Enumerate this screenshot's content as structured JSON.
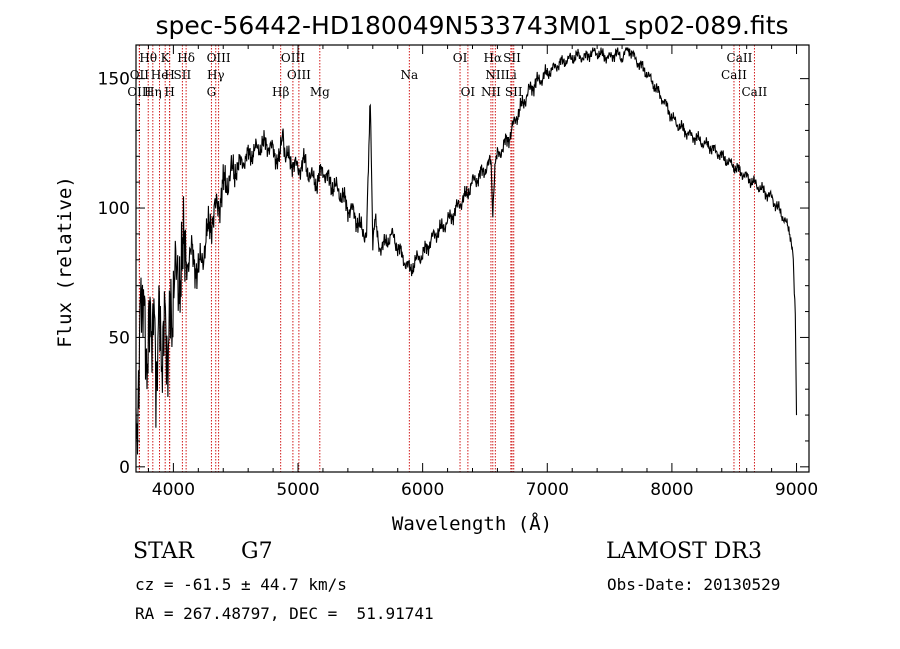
{
  "chart_data": {
    "type": "line",
    "title": "spec-56442-HD180049N533743M01_sp02-089.fits",
    "xlabel": "Wavelength (Å)",
    "ylabel": "Flux (relative)",
    "xlim": [
      3700,
      9100
    ],
    "ylim": [
      -2,
      163
    ],
    "xticks": [
      4000,
      5000,
      6000,
      7000,
      8000,
      9000
    ],
    "yticks": [
      0,
      50,
      100,
      150
    ],
    "series": [
      {
        "name": "flux",
        "x": [
          3700,
          3720,
          3740,
          3760,
          3780,
          3800,
          3820,
          3840,
          3860,
          3880,
          3900,
          3920,
          3940,
          3960,
          3980,
          4000,
          4050,
          4100,
          4150,
          4200,
          4250,
          4300,
          4350,
          4400,
          4450,
          4500,
          4550,
          4600,
          4650,
          4700,
          4750,
          4800,
          4850,
          4880,
          4900,
          4950,
          5000,
          5050,
          5100,
          5150,
          5200,
          5250,
          5300,
          5350,
          5400,
          5450,
          5500,
          5550,
          5580,
          5600,
          5620,
          5650,
          5700,
          5750,
          5800,
          5850,
          5900,
          5950,
          6000,
          6050,
          6100,
          6150,
          6200,
          6250,
          6300,
          6350,
          6400,
          6450,
          6500,
          6550,
          6563,
          6580,
          6600,
          6650,
          6700,
          6750,
          6800,
          6850,
          6900,
          6950,
          7000,
          7050,
          7100,
          7150,
          7200,
          7250,
          7300,
          7350,
          7400,
          7450,
          7500,
          7550,
          7600,
          7650,
          7700,
          7750,
          7800,
          7850,
          7900,
          7950,
          8000,
          8050,
          8100,
          8150,
          8200,
          8250,
          8300,
          8350,
          8400,
          8450,
          8500,
          8550,
          8600,
          8650,
          8700,
          8750,
          8800,
          8850,
          8900,
          8950,
          8970,
          8990,
          9000
        ],
        "values": [
          5,
          35,
          60,
          75,
          30,
          60,
          45,
          70,
          25,
          65,
          40,
          55,
          50,
          45,
          60,
          65,
          78,
          80,
          82,
          75,
          85,
          95,
          100,
          108,
          112,
          115,
          118,
          120,
          122,
          124,
          125,
          122,
          118,
          128,
          120,
          118,
          115,
          118,
          112,
          110,
          115,
          110,
          108,
          105,
          100,
          98,
          92,
          90,
          140,
          88,
          95,
          85,
          86,
          90,
          85,
          80,
          76,
          80,
          82,
          86,
          90,
          92,
          95,
          98,
          102,
          105,
          110,
          112,
          115,
          118,
          95,
          118,
          120,
          124,
          128,
          135,
          140,
          145,
          148,
          150,
          152,
          154,
          156,
          157,
          158,
          159,
          158,
          160,
          160,
          159,
          158,
          160,
          158,
          162,
          158,
          155,
          152,
          148,
          144,
          140,
          135,
          132,
          130,
          128,
          127,
          125,
          124,
          122,
          120,
          118,
          116,
          114,
          112,
          110,
          108,
          106,
          104,
          100,
          96,
          90,
          82,
          60,
          20
        ]
      }
    ],
    "spectral_lines": [
      {
        "label": "Hθ",
        "wavelength": 3798,
        "row": 0
      },
      {
        "label": "K",
        "wavelength": 3934,
        "row": 0
      },
      {
        "label": "Hδ",
        "wavelength": 4102,
        "row": 0
      },
      {
        "label": "OIII",
        "wavelength": 4363,
        "row": 0
      },
      {
        "label": "OIII",
        "wavelength": 4959,
        "row": 0
      },
      {
        "label": "OI",
        "wavelength": 6300,
        "row": 0
      },
      {
        "label": "Hα",
        "wavelength": 6563,
        "row": 0
      },
      {
        "label": "SII",
        "wavelength": 6717,
        "row": 0
      },
      {
        "label": "CaII",
        "wavelength": 8542,
        "row": 0
      },
      {
        "label": "OII",
        "wavelength": 3727,
        "row": 1
      },
      {
        "label": "He",
        "wavelength": 3889,
        "row": 1
      },
      {
        "label": "H",
        "wavelength": 3970,
        "row": 1
      },
      {
        "label": "SII",
        "wavelength": 4072,
        "row": 1
      },
      {
        "label": "Hγ",
        "wavelength": 4340,
        "row": 1
      },
      {
        "label": "OIII",
        "wavelength": 5007,
        "row": 1
      },
      {
        "label": "Na",
        "wavelength": 5893,
        "row": 1
      },
      {
        "label": "NII",
        "wavelength": 6583,
        "row": 1
      },
      {
        "label": "Li",
        "wavelength": 6708,
        "row": 1
      },
      {
        "label": "CaII",
        "wavelength": 8498,
        "row": 1
      },
      {
        "label": "OIII",
        "wavelength": 3727,
        "row": 2
      },
      {
        "label": "Hη",
        "wavelength": 3835,
        "row": 2
      },
      {
        "label": "H",
        "wavelength": 3970,
        "row": 2
      },
      {
        "label": "G",
        "wavelength": 4305,
        "row": 2
      },
      {
        "label": "Hβ",
        "wavelength": 4861,
        "row": 2
      },
      {
        "label": "Mg",
        "wavelength": 5175,
        "row": 2
      },
      {
        "label": "OI",
        "wavelength": 6363,
        "row": 2
      },
      {
        "label": "NII",
        "wavelength": 6548,
        "row": 2
      },
      {
        "label": "SII",
        "wavelength": 6731,
        "row": 2
      },
      {
        "label": "CaII",
        "wavelength": 8662,
        "row": 2
      }
    ]
  },
  "info": {
    "object_class": "STAR",
    "subclass": "G7",
    "survey": "LAMOST DR3",
    "velocity": "cz = -61.5 ± 44.7 km/s",
    "obs_date": "Obs-Date: 20130529",
    "coords": "RA = 267.48797, DEC =  51.91741"
  },
  "colors": {
    "line": "#000000",
    "marker": "#cc0000",
    "axis": "#000000"
  }
}
